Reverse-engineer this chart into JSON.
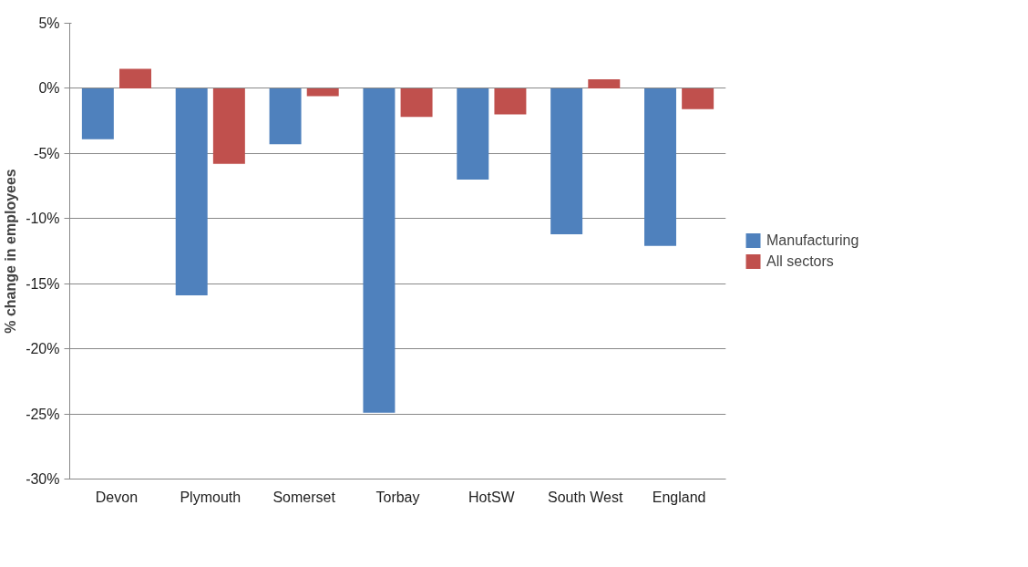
{
  "chart_data": {
    "type": "bar",
    "ylabel": "% change in employees",
    "categories": [
      "Devon",
      "Plymouth",
      "Somerset",
      "Torbay",
      "HotSW",
      "South West",
      "England"
    ],
    "series": [
      {
        "name": "Manufacturing",
        "color": "#4f81bd",
        "values": [
          -3.9,
          -15.9,
          -4.3,
          -24.9,
          -7.0,
          -11.2,
          -12.1
        ]
      },
      {
        "name": "All sectors",
        "color": "#c0504d",
        "values": [
          1.5,
          -5.8,
          -0.6,
          -2.2,
          -2.0,
          0.7,
          -1.6
        ]
      }
    ],
    "ylim": [
      -30,
      5
    ],
    "yticks": [
      {
        "value": -30,
        "label": "-30%"
      },
      {
        "value": -25,
        "label": "-25%"
      },
      {
        "value": -20,
        "label": "-20%"
      },
      {
        "value": -15,
        "label": "-15%"
      },
      {
        "value": -10,
        "label": "-10%"
      },
      {
        "value": -5,
        "label": "-5%"
      },
      {
        "value": 0,
        "label": "0%"
      },
      {
        "value": 5,
        "label": "5%"
      }
    ],
    "grid": "y",
    "legend": "right"
  }
}
